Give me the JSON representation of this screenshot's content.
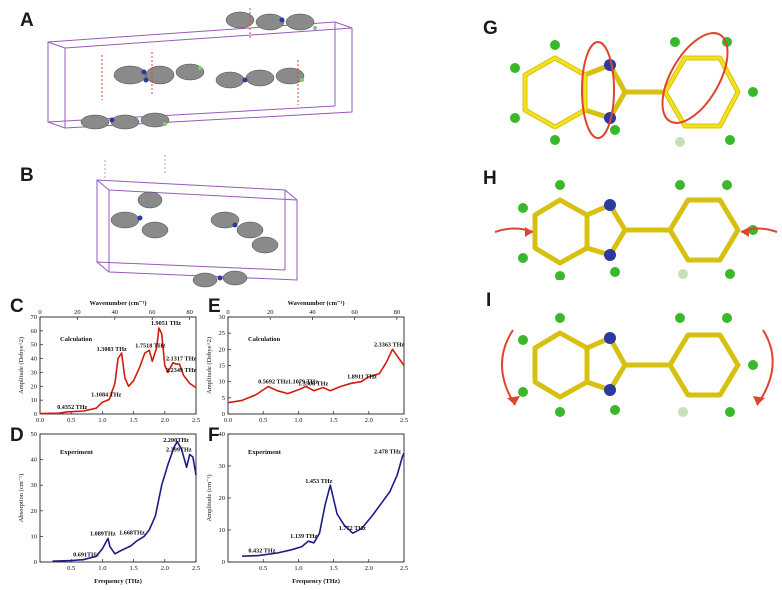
{
  "figure": {
    "panel_labels": {
      "A": "A",
      "B": "B",
      "C": "C",
      "D": "D",
      "E": "E",
      "F": "F",
      "G": "G",
      "H": "H",
      "I": "I"
    }
  },
  "colors": {
    "calc_curve": "#d01c0c",
    "exp_curve": "#1c1c88",
    "carbon": "#f2e21c",
    "nitrogen": "#2a3aa0",
    "hydrogen": "#38b82a",
    "fluorine": "#c8e0b8",
    "arrow": "#e0442c",
    "frame": "#9a5ab8"
  },
  "chart_data": [
    {
      "panel": "C",
      "type": "line",
      "top_axis": {
        "label": "Wavenumber (cm⁻¹)",
        "ticks": [
          "0",
          "20",
          "40",
          "60",
          "80"
        ],
        "range": [
          0,
          83.4
        ]
      },
      "xlabel": "",
      "ylabel": "Amplitude (Debye^2)",
      "xlim": [
        0,
        2.5
      ],
      "ylim": [
        0,
        70
      ],
      "xticks": [
        "0.0",
        "0.5",
        "1.0",
        "1.5",
        "2.0",
        "2.5"
      ],
      "yticks": [
        "0",
        "10",
        "20",
        "30",
        "40",
        "50",
        "60",
        "70"
      ],
      "inner_label": "Calculation",
      "series": [
        {
          "values": [
            [
              0,
              0.3
            ],
            [
              0.3,
              0.6
            ],
            [
              0.4352,
              1.5
            ],
            [
              0.7,
              2.2
            ],
            [
              0.9,
              4.2
            ],
            [
              1.0,
              8.5
            ],
            [
              1.1084,
              10.5
            ],
            [
              1.2,
              22
            ],
            [
              1.25,
              40
            ],
            [
              1.3083,
              44
            ],
            [
              1.36,
              26
            ],
            [
              1.42,
              20
            ],
            [
              1.5,
              24
            ],
            [
              1.6,
              34
            ],
            [
              1.68,
              44
            ],
            [
              1.7518,
              46
            ],
            [
              1.8,
              38
            ],
            [
              1.87,
              48
            ],
            [
              1.9051,
              62
            ],
            [
              1.95,
              58
            ],
            [
              2.0,
              35
            ],
            [
              2.05,
              30
            ],
            [
              2.1317,
              37
            ],
            [
              2.18,
              36
            ],
            [
              2.2349,
              36
            ],
            [
              2.3,
              28
            ],
            [
              2.4,
              22
            ],
            [
              2.5,
              19
            ]
          ]
        }
      ],
      "peak_labels": [
        {
          "text": "0.4352 THz",
          "x": 0.4352,
          "y": 1.5
        },
        {
          "text": "1.1084 THz",
          "x": 1.1084,
          "y": 10.5
        },
        {
          "text": "1.3083 THz",
          "x": 1.3083,
          "y": 44
        },
        {
          "text": "1.7518 THz",
          "x": 1.7518,
          "y": 46
        },
        {
          "text": "1.9051 THz",
          "x": 1.9051,
          "y": 62
        },
        {
          "text": "2.1317 THz",
          "x": 2.1317,
          "y": 37
        },
        {
          "text": "2.2349 THz",
          "x": 2.2349,
          "y": 36
        }
      ]
    },
    {
      "panel": "D",
      "type": "line",
      "xlabel": "Frequency (THz)",
      "ylabel": "Absorption (cm⁻¹)",
      "xlim": [
        0,
        2.5
      ],
      "ylim": [
        0,
        50
      ],
      "xticks": [
        "0.5",
        "1.0",
        "1.5",
        "2.0",
        "2.5"
      ],
      "yticks": [
        "0",
        "10",
        "20",
        "30",
        "40",
        "50"
      ],
      "inner_label": "Experiment",
      "series": [
        {
          "values": [
            [
              0.2,
              0.3
            ],
            [
              0.5,
              0.6
            ],
            [
              0.691,
              0.9
            ],
            [
              0.9,
              2.2
            ],
            [
              1.0,
              5.2
            ],
            [
              1.089,
              9.2
            ],
            [
              1.12,
              6
            ],
            [
              1.2,
              3.2
            ],
            [
              1.3,
              4.5
            ],
            [
              1.45,
              6.2
            ],
            [
              1.55,
              8.2
            ],
            [
              1.668,
              10
            ],
            [
              1.75,
              12.5
            ],
            [
              1.85,
              18
            ],
            [
              1.95,
              30
            ],
            [
              2.05,
              38
            ],
            [
              2.15,
              45
            ],
            [
              2.2,
              47
            ],
            [
              2.27,
              44
            ],
            [
              2.35,
              37
            ],
            [
              2.399,
              42
            ],
            [
              2.45,
              41
            ],
            [
              2.5,
              34
            ]
          ]
        }
      ],
      "peak_labels": [
        {
          "text": "0.691THz",
          "x": 0.691,
          "y": 0.9
        },
        {
          "text": "1.089THz",
          "x": 1.089,
          "y": 9.2
        },
        {
          "text": "1.668THz",
          "x": 1.668,
          "y": 10
        },
        {
          "text": "2.200THz",
          "x": 2.2,
          "y": 47
        },
        {
          "text": "2.399THz",
          "x": 2.399,
          "y": 42
        }
      ]
    },
    {
      "panel": "E",
      "type": "line",
      "top_axis": {
        "label": "Wavenumber (cm⁻¹)",
        "ticks": [
          "0",
          "20",
          "40",
          "60",
          "80"
        ],
        "range": [
          0,
          83.4
        ]
      },
      "xlabel": "",
      "ylabel": "Amplitude (Debye^2)",
      "xlim": [
        0,
        2.5
      ],
      "ylim": [
        0,
        30
      ],
      "xticks": [
        "0.0",
        "0.5",
        "1.0",
        "1.5",
        "2.0",
        "2.5"
      ],
      "yticks": [
        "0",
        "5",
        "10",
        "15",
        "20",
        "25",
        "30"
      ],
      "inner_label": "Calculation",
      "series": [
        {
          "values": [
            [
              0,
              3.5
            ],
            [
              0.2,
              4.2
            ],
            [
              0.4,
              6
            ],
            [
              0.5692,
              8.5
            ],
            [
              0.7,
              7.2
            ],
            [
              0.85,
              6.3
            ],
            [
              1.0,
              7.5
            ],
            [
              1.1079,
              8.5
            ],
            [
              1.22,
              7.2
            ],
            [
              1.3506,
              8.2
            ],
            [
              1.45,
              7.2
            ],
            [
              1.6,
              8.5
            ],
            [
              1.75,
              9.5
            ],
            [
              1.8911,
              10
            ],
            [
              2.0,
              11.5
            ],
            [
              2.15,
              12.5
            ],
            [
              2.25,
              16
            ],
            [
              2.3363,
              20
            ],
            [
              2.4,
              18
            ],
            [
              2.5,
              15
            ]
          ]
        }
      ],
      "peak_labels": [
        {
          "text": "0.5692 THz",
          "x": 0.5692,
          "y": 8.5
        },
        {
          "text": "1.1079 THz",
          "x": 1.1079,
          "y": 8.5
        },
        {
          "text": "1.3506 THz",
          "x": 1.3506,
          "y": 8.2
        },
        {
          "text": "1.8911 THz",
          "x": 1.8911,
          "y": 10
        },
        {
          "text": "2.3363 THz",
          "x": 2.3363,
          "y": 20
        }
      ]
    },
    {
      "panel": "F",
      "type": "line",
      "xlabel": "Frequency (THz)",
      "ylabel": "Amplitude (cm⁻¹)",
      "xlim": [
        0,
        2.5
      ],
      "ylim": [
        0,
        40
      ],
      "xticks": [
        "0.5",
        "1.0",
        "1.5",
        "2.0",
        "2.5"
      ],
      "yticks": [
        "0",
        "10",
        "20",
        "30",
        "40"
      ],
      "inner_label": "Experiment",
      "series": [
        {
          "values": [
            [
              0.2,
              1.8
            ],
            [
              0.432,
              2
            ],
            [
              0.7,
              2.8
            ],
            [
              0.9,
              3.8
            ],
            [
              1.05,
              4.8
            ],
            [
              1.139,
              6.5
            ],
            [
              1.22,
              6
            ],
            [
              1.3,
              9
            ],
            [
              1.38,
              18
            ],
            [
              1.453,
              24
            ],
            [
              1.55,
              15
            ],
            [
              1.65,
              11.5
            ],
            [
              1.772,
              9
            ],
            [
              1.9,
              10.5
            ],
            [
              2.05,
              14.5
            ],
            [
              2.2,
              19
            ],
            [
              2.3,
              22
            ],
            [
              2.4,
              27
            ],
            [
              2.478,
              33
            ],
            [
              2.5,
              34
            ]
          ]
        }
      ],
      "peak_labels": [
        {
          "text": "0.432 THz",
          "x": 0.432,
          "y": 2
        },
        {
          "text": "1.139 THz",
          "x": 1.139,
          "y": 6.5
        },
        {
          "text": "1.453 THz",
          "x": 1.453,
          "y": 24
        },
        {
          "text": "1.772 THz",
          "x": 1.772,
          "y": 9
        },
        {
          "text": "2.478 THz",
          "x": 2.478,
          "y": 33
        }
      ]
    }
  ]
}
